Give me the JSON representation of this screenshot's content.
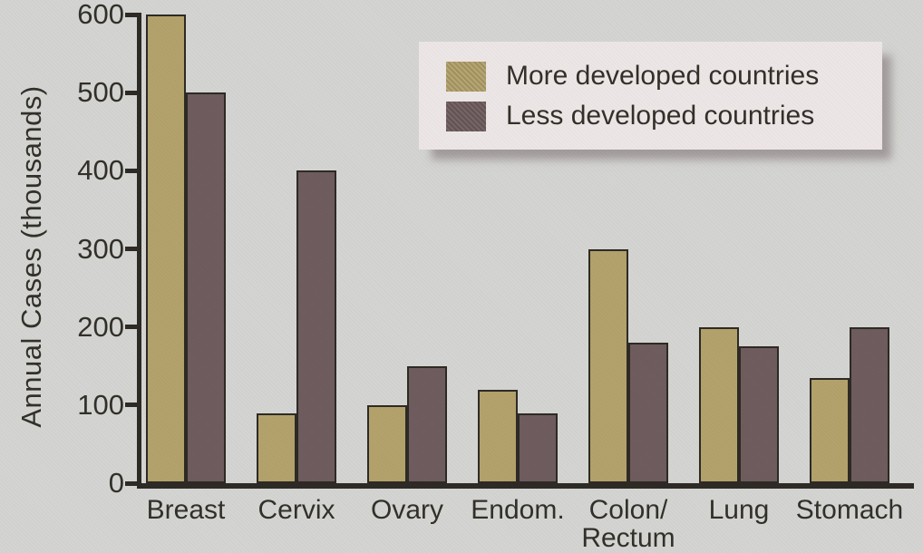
{
  "chart_data": {
    "type": "bar",
    "title": "",
    "ylabel": "Annual Cases (thousands)",
    "xlabel": "",
    "ylim": [
      0,
      600
    ],
    "yticks": [
      600,
      500,
      400,
      300,
      200,
      100,
      0
    ],
    "grid": false,
    "legend_position": "top-right",
    "categories": [
      "Breast",
      "Cervix",
      "Ovary",
      "Endom.",
      "Colon/\nRectum",
      "Lung",
      "Stomach"
    ],
    "series": [
      {
        "name": "More developed countries",
        "color": "#b3a26b",
        "values": [
          600,
          90,
          100,
          120,
          300,
          200,
          135
        ]
      },
      {
        "name": "Less developed countries",
        "color": "#6f5c5e",
        "values": [
          500,
          400,
          150,
          90,
          180,
          175,
          200
        ]
      }
    ]
  },
  "colors": {
    "background": "#d4d5d2",
    "axis": "#2e2a25",
    "text": "#33302a",
    "legend_background": "#ede6e6",
    "legend_shadow": "#7a6c70"
  }
}
